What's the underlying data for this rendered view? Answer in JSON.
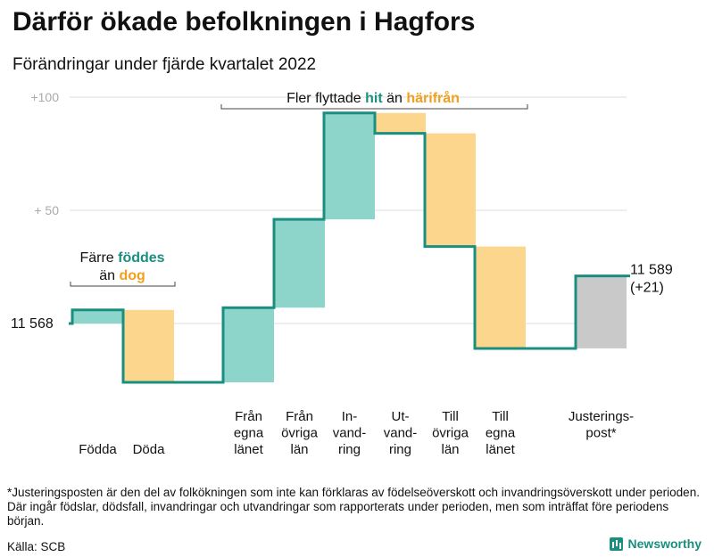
{
  "title": "Därför ökade befolkningen i Hagfors",
  "subtitle": "Förändringar under fjärde kvartalet 2022",
  "chart_data": {
    "type": "waterfall",
    "start_value": 11568,
    "start_label": "11 568",
    "end_label_lines": [
      "11 589",
      "(+21)"
    ],
    "y_ticks": [
      {
        "value": 50,
        "label": "+ 50"
      },
      {
        "value": 100,
        "label": "+100"
      }
    ],
    "steps": [
      {
        "name": "births",
        "label_lines": [
          "Födda"
        ],
        "change": 6,
        "category": "in"
      },
      {
        "name": "deaths",
        "label_lines": [
          "Döda"
        ],
        "change": -32,
        "category": "out"
      },
      {
        "name": "from-own-county",
        "label_lines": [
          "Från",
          "egna",
          "länet"
        ],
        "change": 33,
        "category": "in"
      },
      {
        "name": "from-other-counties",
        "label_lines": [
          "Från",
          "övriga",
          "län"
        ],
        "change": 39,
        "category": "in"
      },
      {
        "name": "immigration",
        "label_lines": [
          "In-",
          "vand-",
          "ring"
        ],
        "change": 47,
        "category": "in"
      },
      {
        "name": "emigration",
        "label_lines": [
          "Ut-",
          "vand-",
          "ring"
        ],
        "change": -9,
        "category": "out"
      },
      {
        "name": "to-other-counties",
        "label_lines": [
          "Till",
          "övriga",
          "län"
        ],
        "change": -50,
        "category": "out"
      },
      {
        "name": "to-own-county",
        "label_lines": [
          "Till",
          "egna",
          "länet"
        ],
        "change": -45,
        "category": "out"
      },
      {
        "name": "adjustment",
        "label_lines": [
          "Justerings-",
          "post*"
        ],
        "change": 32,
        "category": "adjust"
      }
    ],
    "annotations": [
      {
        "name": "births-deaths",
        "lines": [
          [
            {
              "text": "Färre "
            },
            {
              "text": "föddes",
              "color": "in"
            }
          ],
          [
            {
              "text": "än "
            },
            {
              "text": "dog",
              "color": "out"
            }
          ]
        ]
      },
      {
        "name": "migration",
        "lines": [
          [
            {
              "text": "Fler flyttade "
            },
            {
              "text": "hit",
              "color": "in"
            },
            {
              "text": " än "
            },
            {
              "text": "härifrån",
              "color": "out"
            }
          ]
        ]
      }
    ],
    "colors": {
      "in": "#8dd4ca",
      "out": "#fcd68c",
      "adjust": "#c9c9c9",
      "line": "#1a8f80",
      "in_text": "#1a8f80",
      "out_text": "#f0a020",
      "grid": "#dddddd",
      "tick": "#aaaaaa"
    }
  },
  "footnote": "*Justeringsposten är den del av folkökningen som inte kan förklaras av födelseöverskott och invandringsöverskott under perioden. Där ingår födslar, dödsfall, invandringar och utvandringar som rapporterats under perioden, men som inträffat före periodens början.",
  "source": "Källa: SCB",
  "brand": "Newsworthy"
}
